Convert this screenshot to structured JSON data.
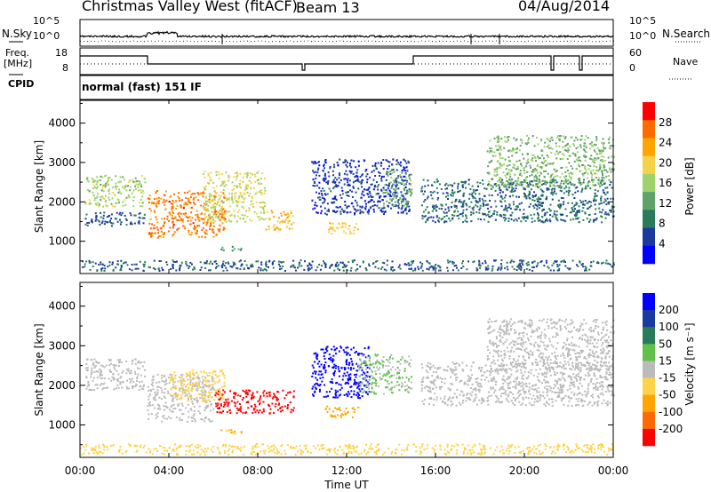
{
  "header": {
    "station": "Christmas Valley West (fitACF)",
    "beam": "Beam 13",
    "date": "04/Aug/2014"
  },
  "strips": {
    "nsky_label": "N.Sky",
    "nsearch_label": "N.Search",
    "freq_label": "Freq.",
    "freq_unit": "[MHz]",
    "nave_label": "Nave",
    "cpid_label": "CPID",
    "mode_text": "normal (fast) 151 IF",
    "noise_ticks": [
      "10^5",
      "10^0"
    ],
    "freq_ticks": [
      "18",
      "8"
    ],
    "nave_ticks": [
      "60",
      "0"
    ]
  },
  "chart_data": [
    {
      "type": "heatmap",
      "panel": "power",
      "ylabel": "Slant Range [km]",
      "yticks": [
        1000,
        2000,
        3000,
        4000
      ],
      "ylim": [
        180,
        4600
      ],
      "xlim": [
        0,
        24
      ],
      "colorbar": {
        "label": "Power [dB]",
        "ticks": [
          4,
          8,
          12,
          16,
          20,
          24,
          28
        ],
        "range": [
          0,
          32
        ],
        "colors": [
          "#0000ff",
          "#1a3a9e",
          "#2a7b5c",
          "#5fa36a",
          "#9fd26a",
          "#f5d24a",
          "#ffa500",
          "#ff6a00",
          "#ff0000"
        ]
      },
      "echo_regions": [
        {
          "t0": 0.2,
          "t1": 2.9,
          "r0": 1900,
          "r1": 2700,
          "level": 16
        },
        {
          "t0": 0.2,
          "t1": 2.9,
          "r0": 1400,
          "r1": 1750,
          "level": 6
        },
        {
          "t0": 3.0,
          "t1": 6.5,
          "r0": 1100,
          "r1": 2300,
          "level": 26
        },
        {
          "t0": 5.5,
          "t1": 8.3,
          "r0": 1500,
          "r1": 2800,
          "level": 18
        },
        {
          "t0": 8.3,
          "t1": 9.6,
          "r0": 1300,
          "r1": 1800,
          "level": 22
        },
        {
          "t0": 6.3,
          "t1": 7.4,
          "r0": 780,
          "r1": 900,
          "level": 12
        },
        {
          "t0": 10.4,
          "t1": 14.8,
          "r0": 1700,
          "r1": 3100,
          "level": 5
        },
        {
          "t0": 11.0,
          "t1": 12.5,
          "r0": 1200,
          "r1": 1500,
          "level": 20
        },
        {
          "t0": 13.6,
          "t1": 14.9,
          "r0": 1900,
          "r1": 2800,
          "level": 14
        },
        {
          "t0": 15.3,
          "t1": 24.0,
          "r0": 1500,
          "r1": 2600,
          "level": 8
        },
        {
          "t0": 18.3,
          "t1": 24.0,
          "r0": 2400,
          "r1": 3700,
          "level": 14
        }
      ]
    },
    {
      "type": "heatmap",
      "panel": "velocity",
      "xlabel": "Time UT",
      "xticks": [
        "00:00",
        "04:00",
        "08:00",
        "12:00",
        "16:00",
        "20:00",
        "00:00"
      ],
      "ylabel": "Slant Range [km]",
      "yticks": [
        1000,
        2000,
        3000,
        4000
      ],
      "ylim": [
        180,
        4600
      ],
      "xlim": [
        0,
        24
      ],
      "colorbar": {
        "label": "Velocity [m s⁻¹]",
        "ticks": [
          200,
          100,
          50,
          15,
          -15,
          -50,
          -100,
          -200
        ],
        "range": [
          -250,
          250
        ],
        "colors": [
          "#0000ff",
          "#1a3a9e",
          "#2a7b5c",
          "#5fc04a",
          "#bbbbbb",
          "#ffd24a",
          "#ffa500",
          "#ff6a00",
          "#ff0000"
        ]
      },
      "echo_regions": [
        {
          "t0": 0.2,
          "t1": 2.9,
          "r0": 1900,
          "r1": 2700,
          "level": 0
        },
        {
          "t0": 3.0,
          "t1": 6.0,
          "r0": 1100,
          "r1": 2300,
          "level": 0
        },
        {
          "t0": 4.0,
          "t1": 6.5,
          "r0": 1600,
          "r1": 2400,
          "level": -60
        },
        {
          "t0": 6.0,
          "t1": 9.6,
          "r0": 1300,
          "r1": 1900,
          "level": -220
        },
        {
          "t0": 6.3,
          "t1": 7.4,
          "r0": 780,
          "r1": 900,
          "level": -90
        },
        {
          "t0": 10.4,
          "t1": 13.0,
          "r0": 1700,
          "r1": 3000,
          "level": 220
        },
        {
          "t0": 11.0,
          "t1": 12.5,
          "r0": 1200,
          "r1": 1500,
          "level": -100
        },
        {
          "t0": 12.5,
          "t1": 14.9,
          "r0": 1800,
          "r1": 2800,
          "level": 30
        },
        {
          "t0": 15.3,
          "t1": 24.0,
          "r0": 1500,
          "r1": 2600,
          "level": 0
        },
        {
          "t0": 18.3,
          "t1": 24.0,
          "r0": 2400,
          "r1": 3700,
          "level": 5
        }
      ]
    }
  ]
}
